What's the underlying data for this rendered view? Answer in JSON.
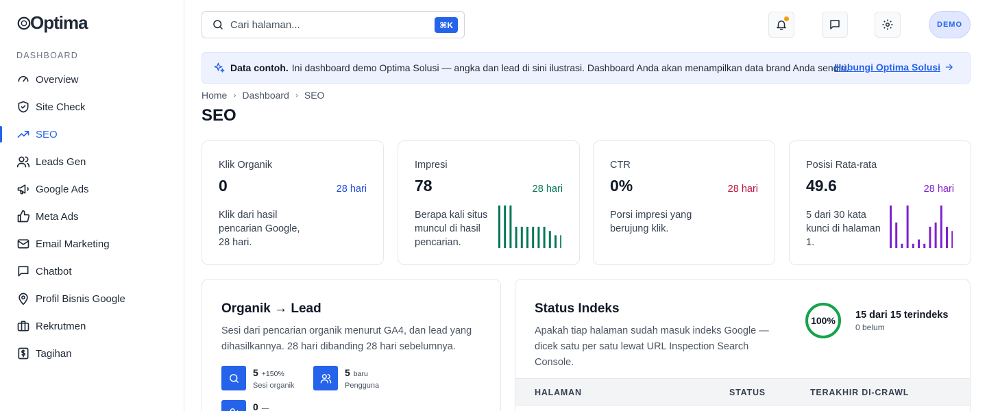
{
  "brand": {
    "name": "Optima"
  },
  "sidebar": {
    "section": "DASHBOARD",
    "items": [
      {
        "label": "Overview",
        "icon": "gauge-icon"
      },
      {
        "label": "Site Check",
        "icon": "shield-check-icon"
      },
      {
        "label": "SEO",
        "icon": "trending-up-icon",
        "active": true
      },
      {
        "label": "Leads Gen",
        "icon": "users-icon"
      },
      {
        "label": "Google Ads",
        "icon": "megaphone-icon"
      },
      {
        "label": "Meta Ads",
        "icon": "thumbs-up-icon"
      },
      {
        "label": "Email Marketing",
        "icon": "mail-icon"
      },
      {
        "label": "Chatbot",
        "icon": "chat-icon"
      },
      {
        "label": "Profil Bisnis Google",
        "icon": "map-pin-icon"
      },
      {
        "label": "Rekrutmen",
        "icon": "briefcase-icon"
      },
      {
        "label": "Tagihan",
        "icon": "invoice-icon"
      }
    ]
  },
  "topbar": {
    "search_placeholder": "Cari halaman...",
    "shortcut": "⌘K",
    "avatar": "DEMO"
  },
  "banner": {
    "bold": "Data contoh.",
    "text": "Ini dashboard demo Optima Solusi — angka dan lead di sini ilustrasi. Dashboard Anda akan menampilkan data brand Anda sendiri.",
    "link": "Hubungi Optima Solusi"
  },
  "breadcrumb": [
    "Home",
    "Dashboard",
    "SEO"
  ],
  "page_title": "SEO",
  "stats": [
    {
      "label": "Klik Organik",
      "value": "0",
      "period": "28 hari",
      "desc": "Klik dari hasil pencarian Google, 28 hari.",
      "color": "#1d4ed8"
    },
    {
      "label": "Impresi",
      "value": "78",
      "period": "28 hari",
      "desc": "Berapa kali situs muncul di hasil pencarian.",
      "color": "#047857",
      "spark": [
        10,
        10,
        10,
        5,
        5,
        5,
        5,
        5,
        5,
        4,
        3,
        3
      ]
    },
    {
      "label": "CTR",
      "value": "0%",
      "period": "28 hari",
      "desc": "Porsi impresi yang berujung klik.",
      "color": "#be123c"
    },
    {
      "label": "Posisi Rata-rata",
      "value": "49.6",
      "period": "28 hari",
      "desc": "5 dari 30 kata kunci di halaman 1.",
      "color": "#7e22ce",
      "spark": [
        10,
        6,
        1,
        10,
        1,
        2,
        1,
        5,
        6,
        10,
        5,
        4
      ]
    }
  ],
  "organic": {
    "title": "Organik → Lead",
    "desc_line1": "Sesi dari pencarian organik menurut GA4, dan lead yang",
    "desc_line2": "dihasilkannya. 28 hari dibanding 28 hari sebelumnya.",
    "metrics": [
      {
        "value": "5",
        "sub": "+150%",
        "label": "Sesi organik",
        "icon": "search-icon"
      },
      {
        "value": "5",
        "sub": "baru",
        "label": "Pengguna",
        "icon": "users-icon"
      },
      {
        "value": "0",
        "sub": "—",
        "label": "",
        "icon": "user-plus-icon"
      }
    ]
  },
  "index": {
    "title": "Status Indeks",
    "desc_line1": "Apakah tiap halaman sudah masuk indeks Google —",
    "desc_line2": "dicek satu per satu lewat URL Inspection Search",
    "desc_line3": "Console.",
    "percent": "100%",
    "percent_value": 100,
    "count": "15 dari 15 terindeks",
    "sub": "0 belum",
    "columns": [
      "HALAMAN",
      "STATUS",
      "TERAKHIR DI-CRAWL"
    ]
  },
  "colors": {
    "accent": "#2563eb",
    "ring": "#16a34a",
    "bell_dot": "#f59e0b"
  }
}
